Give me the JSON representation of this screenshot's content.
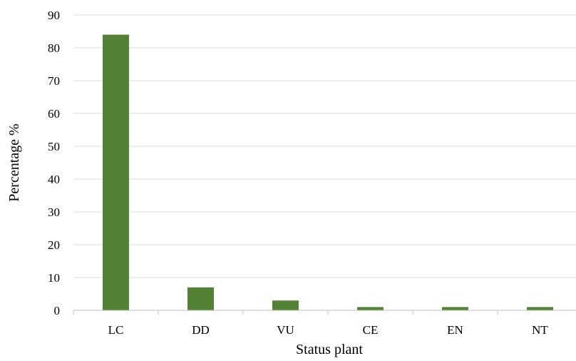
{
  "chart_data": {
    "type": "bar",
    "title": "",
    "xlabel": "Status plant",
    "ylabel": "Percentage %",
    "categories": [
      "LC",
      "DD",
      "VU",
      "CE",
      "EN",
      "NT"
    ],
    "values": [
      84,
      7,
      3,
      1,
      1,
      1
    ],
    "ylim": [
      0,
      90
    ],
    "yticks": [
      0,
      10,
      20,
      30,
      40,
      50,
      60,
      70,
      80,
      90
    ],
    "grid": true,
    "legend": "none",
    "bar_color": "#538135",
    "grid_color": "#d9d9d9",
    "axis_color": "#bfbfbf"
  }
}
